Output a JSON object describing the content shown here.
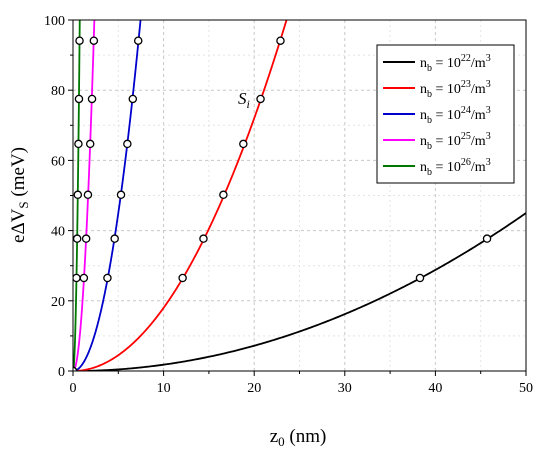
{
  "chart_data": {
    "type": "line",
    "xlabel": {
      "main": "z",
      "sub": "0",
      "unit": " (nm)"
    },
    "ylabel": {
      "main": "eΔV",
      "sub": "S",
      "unit": " (meV)"
    },
    "xlim": [
      0,
      50
    ],
    "ylim": [
      0,
      100
    ],
    "xticks": [
      "0",
      "10",
      "20",
      "30",
      "40",
      "50"
    ],
    "yticks": [
      "0",
      "20",
      "40",
      "60",
      "80",
      "100"
    ],
    "grid": true,
    "legend_position": "top-right",
    "annotation": {
      "text": "S",
      "sub": "i",
      "x": 18.0,
      "y": 78.0
    },
    "series": [
      {
        "name": "n_b = 10^22/m^3",
        "label": {
          "base": "n",
          "sub": "b",
          "mid": " = 10",
          "sup": "22",
          "unit": "/m",
          "unitsup": "3"
        },
        "color": "#000000",
        "k": 0.018,
        "markers_x": [
          0,
          38.3,
          45.7
        ],
        "markers_y": [
          0,
          26.5,
          37.7
        ]
      },
      {
        "name": "n_b = 10^23/m^3",
        "label": {
          "base": "n",
          "sub": "b",
          "mid": " = 10",
          "sup": "23",
          "unit": "/m",
          "unitsup": "3"
        },
        "color": "#ff0000",
        "k": 0.18,
        "markers_x": [
          0,
          12.1,
          14.4,
          16.6,
          18.8,
          20.7,
          22.9
        ],
        "markers_y": [
          0,
          26.5,
          37.7,
          50.2,
          64.7,
          77.5,
          94.1
        ]
      },
      {
        "name": "n_b = 10^24/m^3",
        "label": {
          "base": "n",
          "sub": "b",
          "mid": " = 10",
          "sup": "24",
          "unit": "/m",
          "unitsup": "3"
        },
        "color": "#0000cc",
        "k": 1.8,
        "markers_x": [
          0,
          3.8,
          4.6,
          5.3,
          6.0,
          6.6,
          7.2
        ],
        "markers_y": [
          0,
          26.5,
          37.7,
          50.2,
          64.7,
          77.5,
          94.1
        ]
      },
      {
        "name": "n_b = 10^25/m^3",
        "label": {
          "base": "n",
          "sub": "b",
          "mid": " = 10",
          "sup": "25",
          "unit": "/m",
          "unitsup": "3"
        },
        "color": "#ff00ff",
        "k": 18,
        "markers_x": [
          0,
          1.2,
          1.45,
          1.65,
          1.9,
          2.1,
          2.3
        ],
        "markers_y": [
          0,
          26.5,
          37.7,
          50.2,
          64.7,
          77.5,
          94.1
        ]
      },
      {
        "name": "n_b = 10^26/m^3",
        "label": {
          "base": "n",
          "sub": "b",
          "mid": " = 10",
          "sup": "26",
          "unit": "/m",
          "unitsup": "3"
        },
        "color": "#007700",
        "k": 180,
        "markers_x": [
          0,
          0.38,
          0.46,
          0.53,
          0.6,
          0.66,
          0.72
        ],
        "markers_y": [
          0,
          26.5,
          37.7,
          50.2,
          64.7,
          77.5,
          94.1
        ]
      }
    ]
  }
}
